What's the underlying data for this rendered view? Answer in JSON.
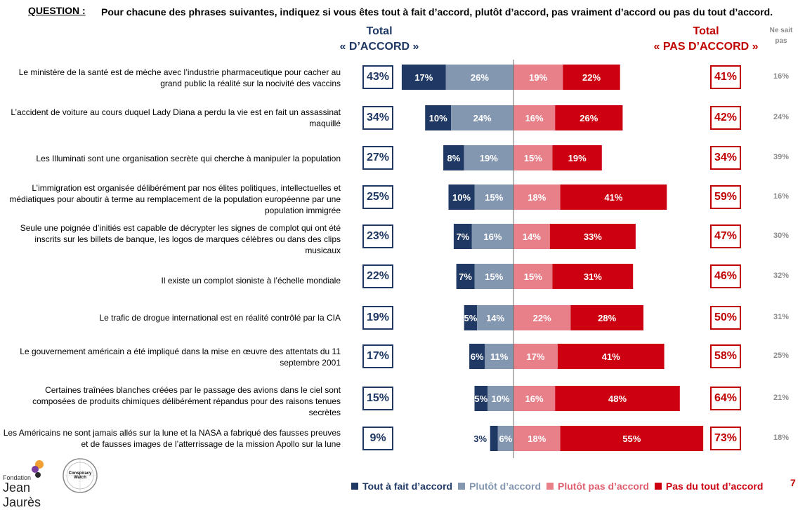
{
  "header": {
    "question_label": "QUESTION :",
    "question_text": "Pour chacune des phrases suivantes, indiquez si vous êtes tout à fait d’accord, plutôt d’accord, pas vraiment d’accord ou pas du tout d’accord.",
    "total_agree_line1": "Total",
    "total_agree_line2": "« D’ACCORD »",
    "total_disagree_line1": "Total",
    "total_disagree_line2": "« PAS D’ACCORD »",
    "no_opinion_line1": "Ne sait",
    "no_opinion_line2": "pas"
  },
  "colors": {
    "tout_a_fait": "#1f3864",
    "plutot": "#8497b0",
    "plutot_pas": "#e8808a",
    "pas_du_tout": "#cc0011",
    "agree_text": "#1f3864",
    "disagree_text": "#c00000",
    "grey_text": "#8c8c8c"
  },
  "chart_data": {
    "type": "bar",
    "orientation": "horizontal-diverging",
    "categories": [
      "Le ministère de la santé est de mèche avec l’industrie pharmaceutique pour cacher au grand public la réalité sur la nocivité des vaccins",
      "L’accident de voiture au cours duquel Lady Diana a perdu la vie est en fait un assassinat maquillé",
      "Les Illuminati sont une organisation secrète qui cherche à manipuler la population",
      "L’immigration est organisée délibérément par nos élites politiques, intellectuelles et médiatiques pour aboutir à terme au remplacement de la population européenne par une population immigrée",
      "Seule une poignée d’initiés est capable de décrypter les signes de complot qui ont été inscrits sur les billets de banque, les logos de marques célèbres ou dans des clips musicaux",
      "Il existe un complot sioniste à l’échelle mondiale",
      "Le trafic de drogue international est en réalité contrôlé par la CIA",
      "Le gouvernement américain a été impliqué dans la mise en œuvre des attentats du 11 septembre 2001",
      "Certaines traînées blanches créées par le passage des avions dans le ciel sont composées de produits chimiques délibérément répandus pour des raisons tenues secrètes",
      "Les Américains ne sont jamais allés sur la lune et la NASA a fabriqué des fausses preuves et de fausses images de l’atterrissage de la mission Apollo sur la lune"
    ],
    "series": [
      {
        "name": "Tout à fait d’accord",
        "values": [
          17,
          10,
          8,
          10,
          7,
          7,
          5,
          6,
          5,
          3
        ]
      },
      {
        "name": "Plutôt d’accord",
        "values": [
          26,
          24,
          19,
          15,
          16,
          15,
          14,
          11,
          10,
          6
        ]
      },
      {
        "name": "Plutôt pas d’accord",
        "values": [
          19,
          16,
          15,
          18,
          14,
          15,
          22,
          17,
          16,
          18
        ]
      },
      {
        "name": "Pas du tout d’accord",
        "values": [
          22,
          26,
          19,
          41,
          33,
          31,
          28,
          41,
          48,
          55
        ]
      }
    ],
    "value_labels": [
      [
        "17%",
        "26%",
        "19%",
        "22%"
      ],
      [
        "10%",
        "24%",
        "16%",
        "26%"
      ],
      [
        "8%",
        "19%",
        "15%",
        "19%"
      ],
      [
        "10%",
        "15%",
        "18%",
        "41%"
      ],
      [
        "7%",
        "16%",
        "14%",
        "33%"
      ],
      [
        "7%",
        "15%",
        "15%",
        "31%"
      ],
      [
        "5%",
        "14%",
        "22%",
        "28%"
      ],
      [
        "6%",
        "11%",
        "17%",
        "41%"
      ],
      [
        "5%",
        "10%",
        "16%",
        "48%"
      ],
      [
        "3%",
        "6%",
        "18%",
        "55%"
      ]
    ],
    "total_agree": [
      "43%",
      "34%",
      "27%",
      "25%",
      "23%",
      "22%",
      "19%",
      "17%",
      "15%",
      "9%"
    ],
    "total_disagree": [
      "41%",
      "42%",
      "34%",
      "59%",
      "47%",
      "46%",
      "50%",
      "58%",
      "64%",
      "73%"
    ],
    "no_opinion": [
      "16%",
      "24%",
      "39%",
      "16%",
      "30%",
      "32%",
      "31%",
      "25%",
      "21%",
      "18%"
    ],
    "legend_position": "bottom"
  },
  "legend": {
    "items": [
      "Tout à fait d’accord",
      "Plutôt d’accord",
      "Plutôt pas d’accord",
      "Pas du tout d’accord"
    ]
  },
  "footer": {
    "logo1_small": "Fondation",
    "logo1_big": "Jean Jaurès",
    "logo2": "Conspiracy Watch",
    "page_number": "7"
  }
}
